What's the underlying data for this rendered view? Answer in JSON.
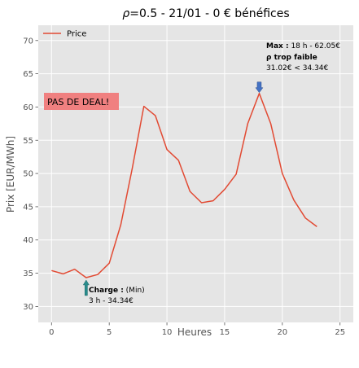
{
  "chart_data": {
    "type": "line",
    "title": "ρ=0.5 - 21/01 - 0 € bénéfices",
    "title_prefix": "ρ",
    "title_rest": "=0.5 - 21/01 - 0 € bénéfices",
    "xlabel": "Heures",
    "ylabel": "Prix [EUR/MWh]",
    "xlim": [
      -1.15,
      26.15
    ],
    "ylim": [
      27.6,
      72.3
    ],
    "xticks": [
      0,
      5,
      10,
      15,
      20,
      25
    ],
    "yticks": [
      30,
      35,
      40,
      45,
      50,
      55,
      60,
      65,
      70
    ],
    "grid": true,
    "legend": {
      "position": "top-left",
      "entries": [
        "Price"
      ]
    },
    "series": [
      {
        "name": "Price",
        "color": "#e24a33",
        "x": [
          0,
          1,
          2,
          3,
          4,
          5,
          6,
          7,
          8,
          9,
          10,
          11,
          12,
          13,
          14,
          15,
          16,
          17,
          18,
          19,
          20,
          21,
          22,
          23
        ],
        "y": [
          35.4,
          34.9,
          35.6,
          34.34,
          34.8,
          36.5,
          42.3,
          50.8,
          60.1,
          58.7,
          53.6,
          52.0,
          47.3,
          45.6,
          45.9,
          47.6,
          49.9,
          57.5,
          62.05,
          57.5,
          50.0,
          46.0,
          43.3,
          42.0
        ]
      }
    ],
    "annotations": {
      "no_deal": {
        "text": "PAS DE DEAL!",
        "color": "#f08080"
      },
      "max": {
        "arrow_x": 18,
        "arrow_y": 62.05,
        "arrow_color": "#4472c4",
        "label_bold": "Max :",
        "label_rest": " 18 h - 62.05€",
        "line2_bold": "ρ trop faible",
        "line3": " 31.02€ < 34.34€"
      },
      "charge": {
        "arrow_x": 3,
        "arrow_y": 34.34,
        "arrow_color": "#2a8c8c",
        "label_bold": "Charge :",
        "label_rest": " (Min)",
        "line2": "3 h - 34.34€"
      }
    }
  }
}
